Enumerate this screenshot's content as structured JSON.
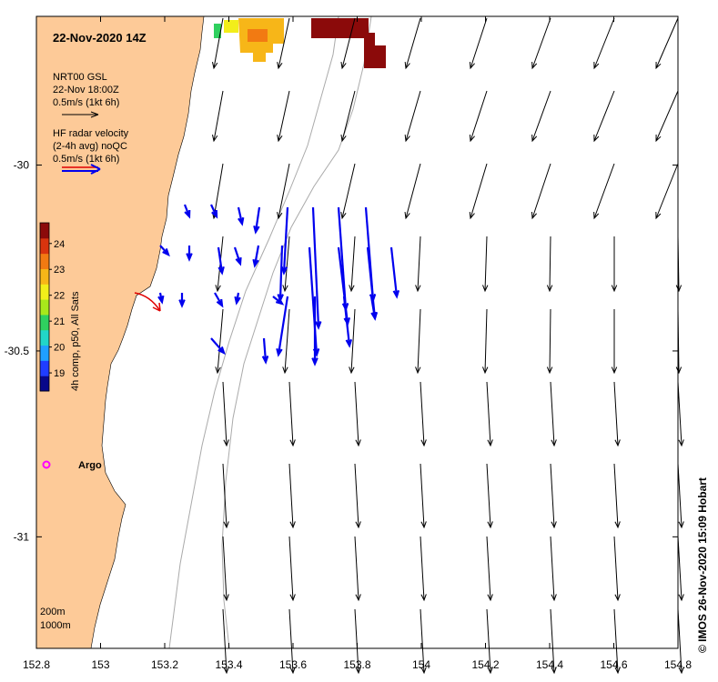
{
  "title": "22-Nov-2020 14Z",
  "legend": {
    "model_lines": [
      "NRT00 GSL",
      "22-Nov 18:00Z",
      "0.5m/s (1kt 6h)"
    ],
    "radar_lines": [
      "HF radar velocity",
      "(2-4h avg) noQC",
      "0.5m/s (1kt 6h)"
    ]
  },
  "colorbar": {
    "label": "4h comp, p50, All Sats",
    "ticks": [
      "24",
      "23",
      "22",
      "21",
      "20",
      "19"
    ],
    "range": [
      18.3,
      24.8
    ],
    "colors": [
      "#08088a",
      "#1f3dff",
      "#1fa0ff",
      "#22d6c8",
      "#2fd05f",
      "#a8e81b",
      "#f2ee1a",
      "#f7b618",
      "#f27a12",
      "#d9340e",
      "#8b0a0a"
    ]
  },
  "axes": {
    "x_ticks": [
      "152.8",
      "153",
      "153.2",
      "153.4",
      "153.6",
      "153.8",
      "154",
      "154.2",
      "154.4",
      "154.6",
      "154.8"
    ],
    "y_ticks": [
      "-30",
      "-30.5",
      "-31"
    ],
    "x_range": [
      152.8,
      154.8
    ],
    "y_range": [
      -31.3,
      -29.6
    ]
  },
  "argo_label": "Argo",
  "depth_labels": [
    "200m",
    "1000m"
  ],
  "credit": "© IMOS 26-Nov-2020 15:09 Hobart",
  "colors": {
    "land": "#fdca98",
    "model_arrow": "#000000",
    "radar_arrow": "#0000ee",
    "red_arrow": "#e00000",
    "argo": "#ff00ff",
    "contour": "#aaaaaa"
  }
}
